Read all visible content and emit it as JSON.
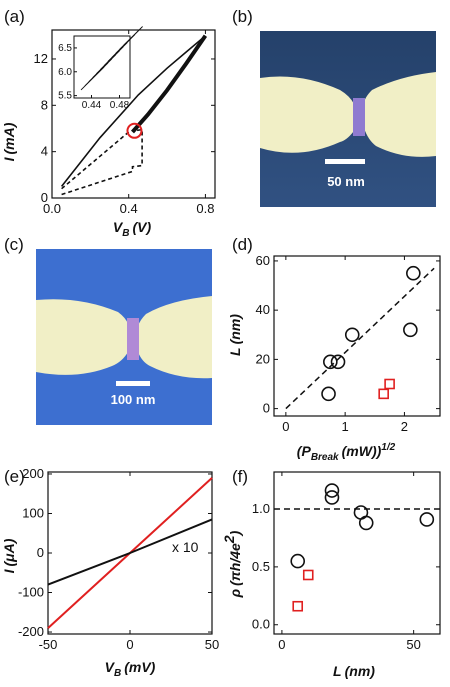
{
  "panel_labels": {
    "a": "(a)",
    "b": "(b)",
    "c": "(c)",
    "d": "(d)",
    "e": "(e)",
    "f": "(f)"
  },
  "images": {
    "b": {
      "scale_bar": "50 nm",
      "colors": {
        "substrate": "#2a4a78",
        "electrode": "#f1efc6",
        "gap": "#8f7bd0"
      }
    },
    "c": {
      "scale_bar": "100 nm",
      "colors": {
        "substrate": "#3d6fd0",
        "electrode": "#f1efc6",
        "gap": "#b08ad6"
      }
    }
  },
  "chart_data": [
    {
      "id": "a",
      "type": "line",
      "xlabel": "V_B (V)",
      "ylabel": "I (mA)",
      "xlim": [
        0,
        0.85
      ],
      "ylim": [
        0,
        14.5
      ],
      "xticks": [
        "0.0",
        "0.4",
        "0.8"
      ],
      "yticks": [
        "0",
        "4",
        "8",
        "12"
      ],
      "series": [
        {
          "style": "solid",
          "x": [
            0.05,
            0.25,
            0.45,
            0.6,
            0.7,
            0.8
          ],
          "y": [
            1.0,
            5.2,
            8.9,
            11.2,
            12.6,
            14.0
          ]
        },
        {
          "style": "solid",
          "x": [
            0.42,
            0.5,
            0.6,
            0.7,
            0.8
          ],
          "y": [
            5.7,
            7.2,
            9.3,
            11.6,
            14.0
          ]
        },
        {
          "style": "dashed",
          "x": [
            0.05,
            0.42,
            0.42,
            0.47,
            0.47,
            0.43
          ],
          "y": [
            0.3,
            2.3,
            2.7,
            2.8,
            5.9,
            5.8
          ]
        },
        {
          "style": "dashed",
          "x": [
            0.05,
            0.4
          ],
          "y": [
            0.8,
            5.7
          ]
        }
      ],
      "marker_circle": {
        "x": 0.43,
        "y": 5.8,
        "color": "#e02020"
      },
      "inset": {
        "xlim": [
          0.415,
          0.495
        ],
        "ylim": [
          5.45,
          6.75
        ],
        "xticks": [
          "0.44",
          "0.48"
        ],
        "yticks": [
          "5.5",
          "6.0",
          "6.5"
        ]
      }
    },
    {
      "id": "d",
      "type": "scatter",
      "xlabel": "(P_Break (mW))^1/2",
      "ylabel": "L (nm)",
      "xlim": [
        -0.2,
        2.6
      ],
      "ylim": [
        -3,
        62
      ],
      "xticks": [
        "0",
        "1",
        "2"
      ],
      "yticks": [
        "0",
        "20",
        "40",
        "60"
      ],
      "series": [
        {
          "marker": "circle",
          "color": "#111111",
          "x": [
            0.72,
            0.75,
            0.88,
            1.12,
            2.1,
            2.15
          ],
          "y": [
            6,
            19,
            19,
            30,
            32,
            55
          ]
        },
        {
          "marker": "square",
          "color": "#e02020",
          "x": [
            1.65,
            1.75
          ],
          "y": [
            6,
            10
          ]
        }
      ],
      "fit_line": {
        "style": "dashed",
        "x": [
          0,
          2.5
        ],
        "y": [
          0,
          57
        ]
      }
    },
    {
      "id": "e",
      "type": "line",
      "xlabel": "V_B (mV)",
      "ylabel": "I (μA)",
      "xlim": [
        -50,
        50
      ],
      "ylim": [
        -205,
        205
      ],
      "xticks": [
        "-50",
        "0",
        "50"
      ],
      "yticks": [
        "-200",
        "-100",
        "0",
        "100",
        "200"
      ],
      "annotation": "x 10",
      "series": [
        {
          "color": "#e02020",
          "x": [
            -50,
            50
          ],
          "y": [
            -190,
            190
          ]
        },
        {
          "color": "#111111",
          "x": [
            -50,
            0,
            50
          ],
          "y": [
            -80,
            0,
            85
          ]
        }
      ]
    },
    {
      "id": "f",
      "type": "scatter",
      "xlabel": "L (nm)",
      "ylabel": "ρ (πh/4e²)",
      "xlim": [
        -3,
        60
      ],
      "ylim": [
        -0.08,
        1.32
      ],
      "xticks": [
        "0",
        "50"
      ],
      "yticks": [
        "0.0",
        "0.5",
        "1.0"
      ],
      "series": [
        {
          "marker": "circle",
          "color": "#111111",
          "x": [
            6,
            19,
            19,
            30,
            32,
            55
          ],
          "y": [
            0.55,
            1.16,
            1.1,
            0.97,
            0.88,
            0.91
          ]
        },
        {
          "marker": "square",
          "color": "#e02020",
          "x": [
            6,
            10
          ],
          "y": [
            0.16,
            0.43
          ]
        }
      ],
      "ref_line": {
        "style": "dashed",
        "y": 1.0
      }
    }
  ]
}
